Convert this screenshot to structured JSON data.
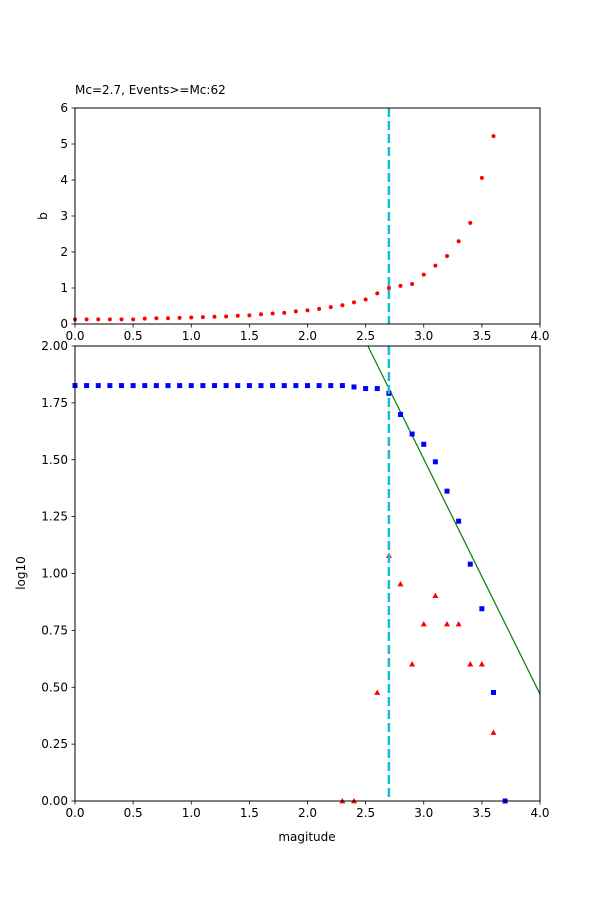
{
  "chart_data": [
    {
      "type": "scatter",
      "title": "Mc=2.7, Events>=Mc:62",
      "xlabel": "",
      "ylabel": "b",
      "xlim": [
        0,
        4
      ],
      "ylim": [
        0,
        6
      ],
      "x_ticks": [
        "0.0",
        "0.5",
        "1.0",
        "1.5",
        "2.0",
        "2.5",
        "3.0",
        "3.5",
        "4.0"
      ],
      "y_ticks": [
        "0",
        "1",
        "2",
        "3",
        "4",
        "5",
        "6"
      ],
      "grid": false,
      "mc_line": {
        "x": 2.7,
        "color": "#17becf",
        "style": "dashed"
      },
      "series": [
        {
          "marker": "circle",
          "color": "#ff0000",
          "x": [
            0.0,
            0.1,
            0.2,
            0.3,
            0.4,
            0.5,
            0.6,
            0.7,
            0.8,
            0.9,
            1.0,
            1.1,
            1.2,
            1.3,
            1.4,
            1.5,
            1.6,
            1.7,
            1.8,
            1.9,
            2.0,
            2.1,
            2.2,
            2.3,
            2.4,
            2.5,
            2.6,
            2.7,
            2.8,
            2.9,
            3.0,
            3.1,
            3.2,
            3.3,
            3.4,
            3.5,
            3.6
          ],
          "y": [
            0.13,
            0.13,
            0.13,
            0.13,
            0.13,
            0.13,
            0.15,
            0.16,
            0.16,
            0.17,
            0.18,
            0.19,
            0.2,
            0.21,
            0.23,
            0.24,
            0.27,
            0.29,
            0.31,
            0.35,
            0.38,
            0.42,
            0.47,
            0.52,
            0.6,
            0.68,
            0.85,
            1.0,
            1.06,
            1.11,
            1.37,
            1.62,
            1.89,
            2.3,
            2.81,
            4.06,
            5.22
          ]
        }
      ]
    },
    {
      "type": "scatter",
      "title": "",
      "xlabel": "magitude",
      "ylabel": "log10",
      "xlim": [
        0,
        4
      ],
      "ylim": [
        0,
        2
      ],
      "x_ticks": [
        "0.0",
        "0.5",
        "1.0",
        "1.5",
        "2.0",
        "2.5",
        "3.0",
        "3.5",
        "4.0"
      ],
      "y_ticks": [
        "0.00",
        "0.25",
        "0.50",
        "0.75",
        "1.00",
        "1.25",
        "1.50",
        "1.75",
        "2.00"
      ],
      "grid": false,
      "mc_line": {
        "x": 2.7,
        "color": "#17becf",
        "style": "dashed"
      },
      "series": [
        {
          "marker": "square",
          "color": "#0000ff",
          "x": [
            0.0,
            0.1,
            0.2,
            0.3,
            0.4,
            0.5,
            0.6,
            0.7,
            0.8,
            0.9,
            1.0,
            1.1,
            1.2,
            1.3,
            1.4,
            1.5,
            1.6,
            1.7,
            1.8,
            1.9,
            2.0,
            2.1,
            2.2,
            2.3,
            2.4,
            2.5,
            2.6,
            2.7,
            2.8,
            2.9,
            3.0,
            3.1,
            3.2,
            3.3,
            3.4,
            3.5,
            3.6,
            3.7
          ],
          "y": [
            1.826,
            1.826,
            1.826,
            1.826,
            1.826,
            1.826,
            1.826,
            1.826,
            1.826,
            1.826,
            1.826,
            1.826,
            1.826,
            1.826,
            1.826,
            1.826,
            1.826,
            1.826,
            1.826,
            1.826,
            1.826,
            1.826,
            1.826,
            1.826,
            1.82,
            1.813,
            1.813,
            1.792,
            1.699,
            1.613,
            1.568,
            1.491,
            1.362,
            1.23,
            1.041,
            0.845,
            0.477,
            0.0
          ]
        },
        {
          "marker": "triangle",
          "color": "#ff0000",
          "x": [
            2.3,
            2.4,
            2.6,
            2.7,
            2.8,
            2.9,
            3.0,
            3.1,
            3.2,
            3.3,
            3.4,
            3.5,
            3.6
          ],
          "y": [
            0.0,
            0.0,
            0.477,
            1.079,
            0.954,
            0.602,
            0.778,
            0.903,
            0.778,
            0.778,
            0.602,
            0.602,
            0.301
          ]
        }
      ],
      "fit_line": {
        "color": "#008000",
        "x": [
          2.5,
          4.0
        ],
        "y": [
          2.02,
          0.47
        ]
      }
    }
  ]
}
